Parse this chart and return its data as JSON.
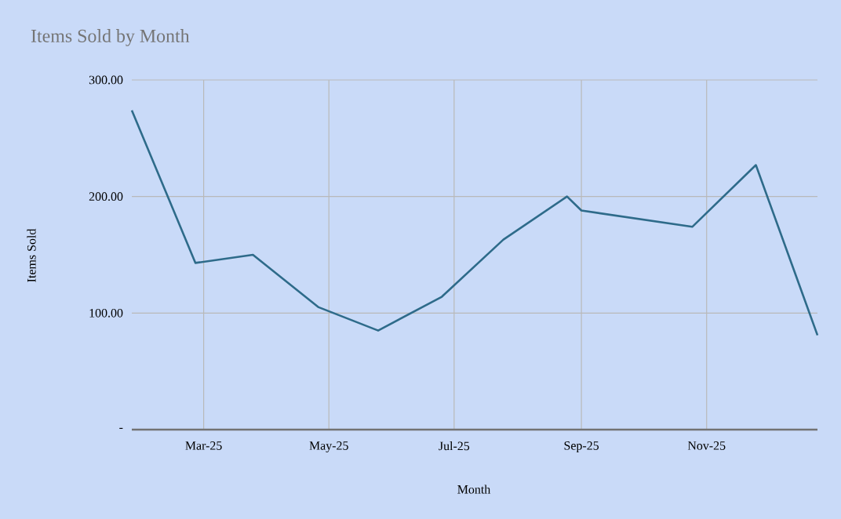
{
  "chart_data": {
    "type": "line",
    "title": "Items Sold by Month",
    "xlabel": "Month",
    "ylabel": "Items Sold",
    "x": [
      "2025-01-25",
      "2025-02-25",
      "2025-03-25",
      "2025-04-26",
      "2025-05-25",
      "2025-06-25",
      "2025-07-25",
      "2025-08-25",
      "2025-09-01",
      "2025-10-25",
      "2025-11-25",
      "2025-12-25"
    ],
    "series": [
      {
        "color": "#2e6b8a",
        "values": [
          274,
          143,
          150,
          105,
          85,
          114,
          163,
          200,
          188,
          174,
          227,
          81
        ]
      }
    ],
    "xlim": [
      "2025-01-25",
      "2025-12-25"
    ],
    "xticks": [
      {
        "value": "2025-03-01",
        "label": "Mar-25"
      },
      {
        "value": "2025-05-01",
        "label": "May-25"
      },
      {
        "value": "2025-07-01",
        "label": "Jul-25"
      },
      {
        "value": "2025-09-01",
        "label": "Sep-25"
      },
      {
        "value": "2025-11-01",
        "label": "Nov-25"
      }
    ],
    "ylim": [
      0,
      300
    ],
    "yticks": [
      {
        "value": 0,
        "label": "-"
      },
      {
        "value": 100,
        "label": "100.00"
      },
      {
        "value": 200,
        "label": "200.00"
      },
      {
        "value": 300,
        "label": "300.00"
      }
    ],
    "grid": true
  }
}
